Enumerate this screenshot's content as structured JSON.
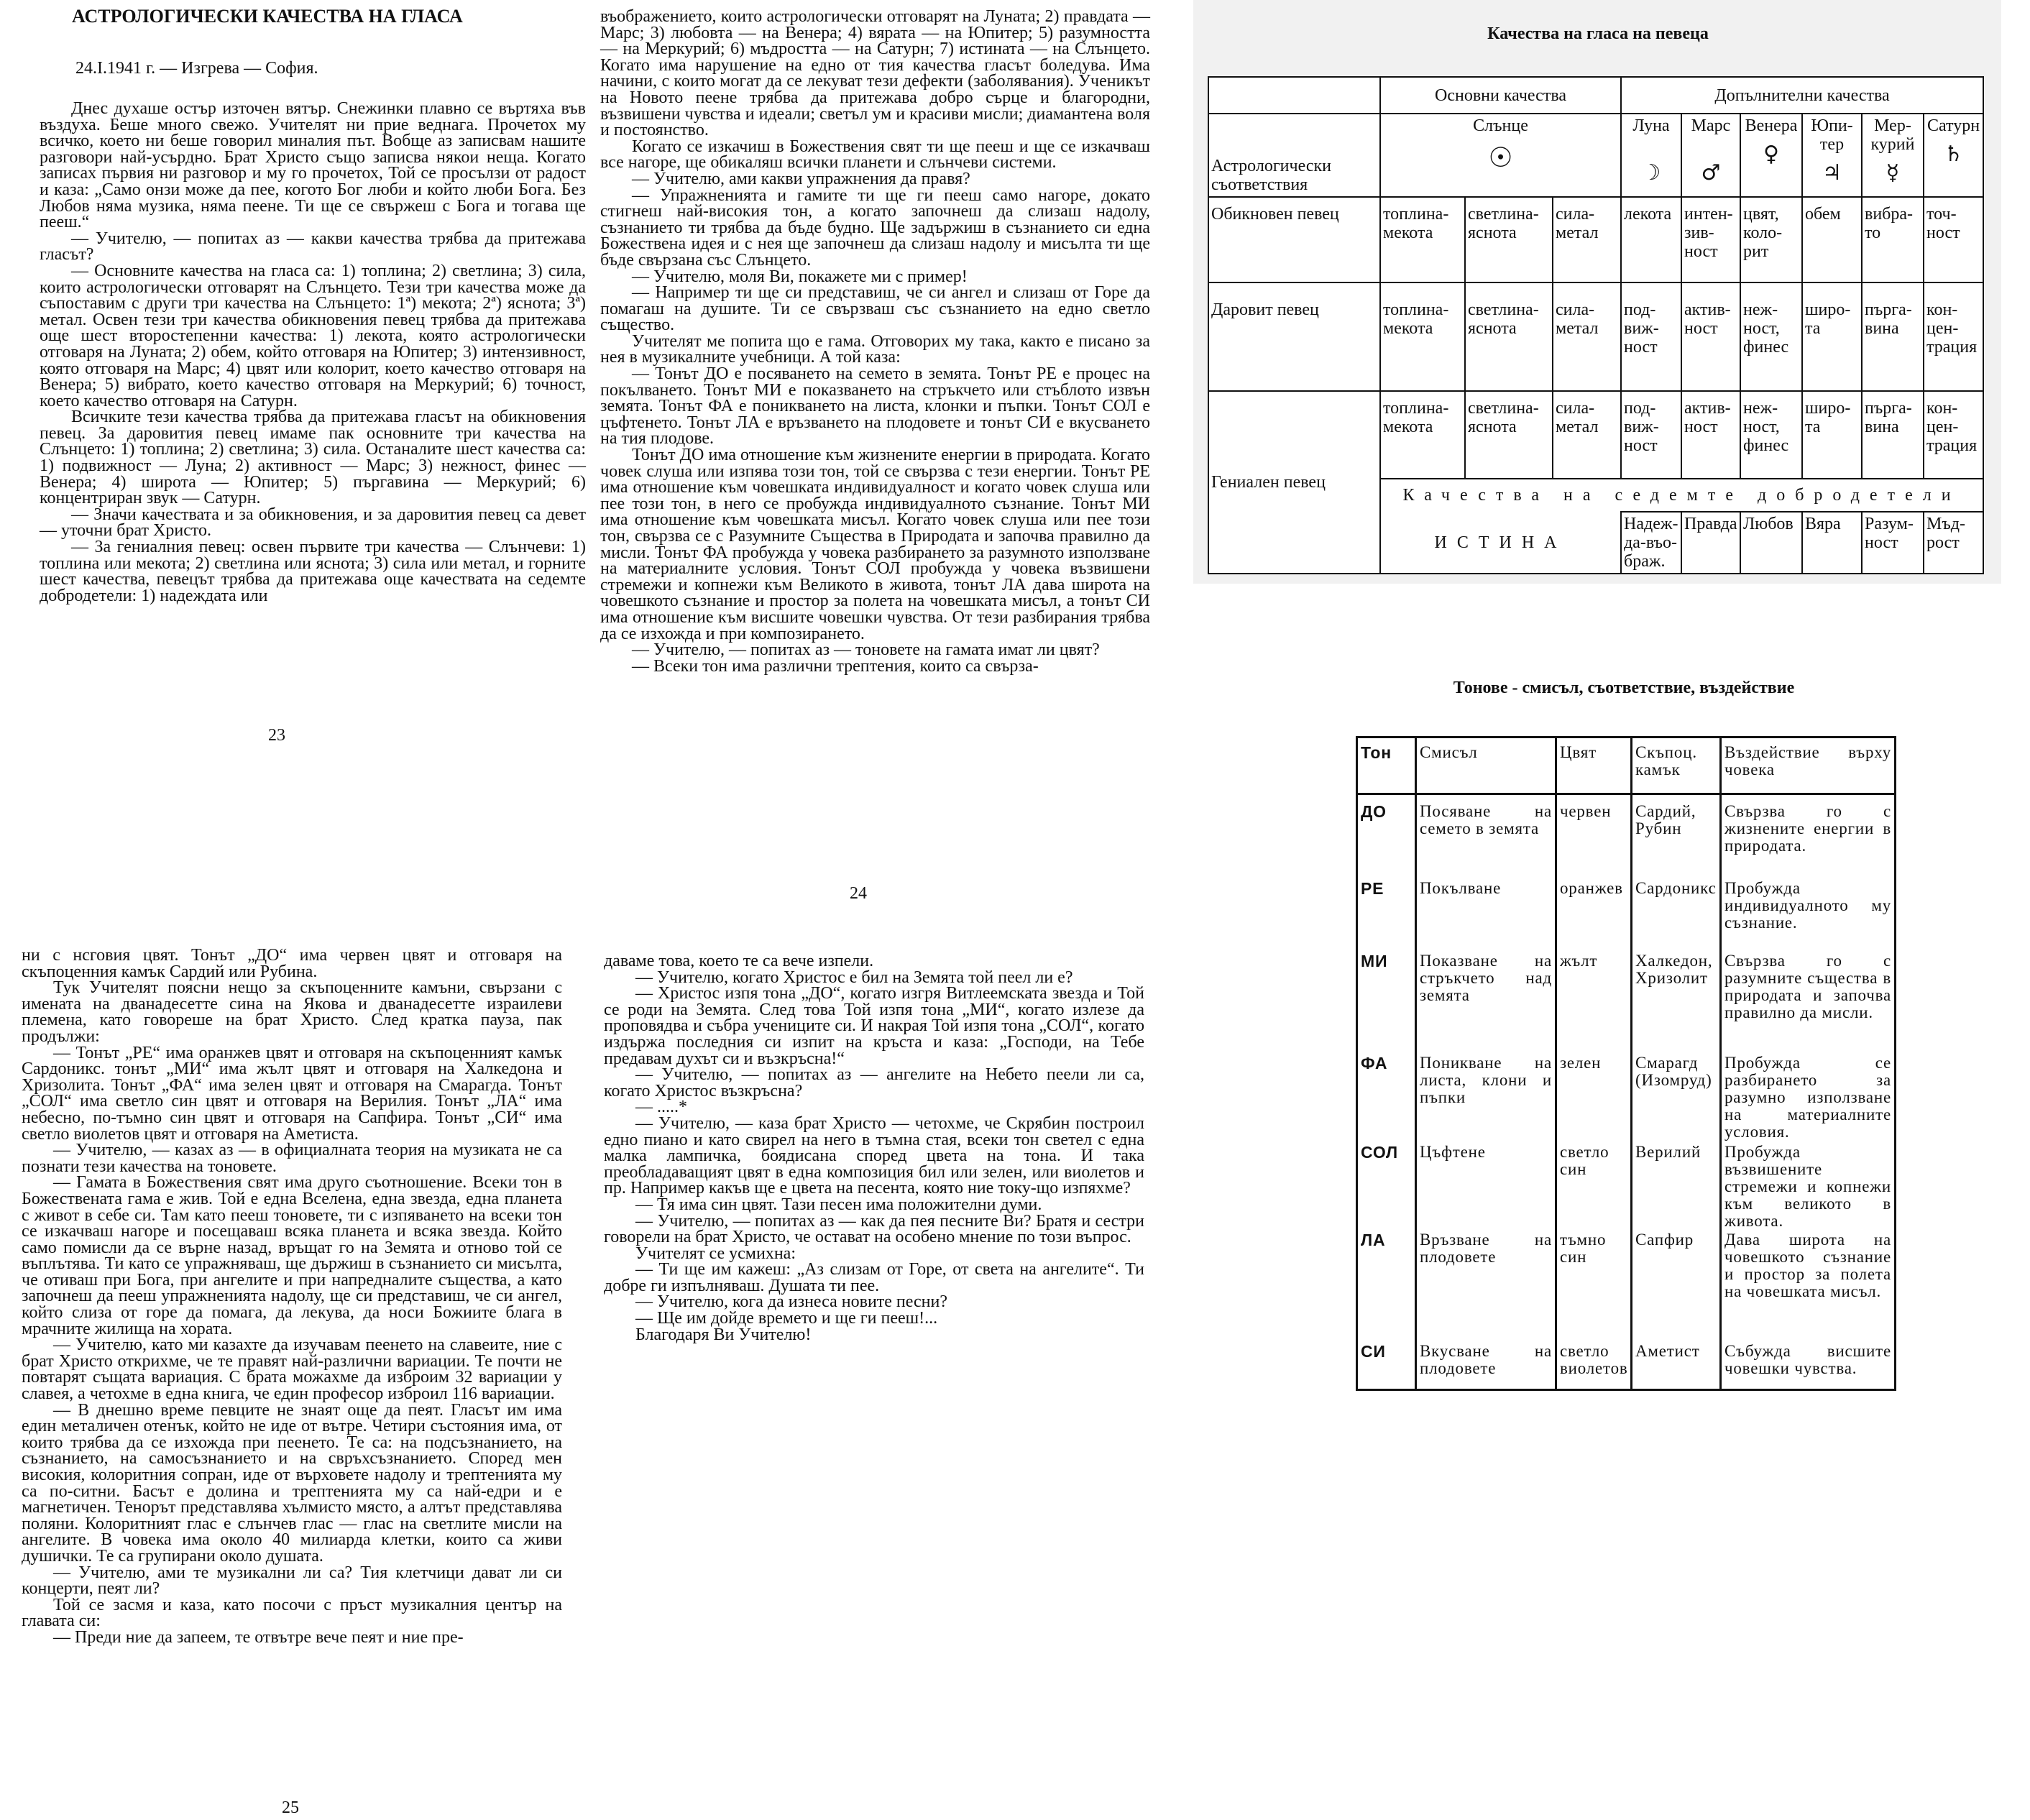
{
  "pages": [
    {
      "title": "АСТРОЛОГИЧЕСКИ КАЧЕСТВА НА ГЛАСА",
      "dateline": "24.I.1941 г. — Изгрева — София.",
      "page_number": "23",
      "paragraphs": [
        "Днес духаше остър източен вятър. Снежинки плавно се въртяха във въздуха. Беше много свежо. Учителят ни прие веднага. Прочетох му всичко, което ни беше говорил миналия път. Вобще аз записвам нашите разговори най-усърдно. Брат Христо също записва някои неща. Когато записах първия ни разговор и му го прочетох, Той се просълзи от радост и каза: „Само онзи може да пее, когото Бог люби и който люби Бога. Без Любов няма музика, няма пеене. Ти ще се свържеш с Бога и тогава ще пееш.“",
        "— Учителю, — попитах аз — какви качества трябва да притежава гласът?",
        "— Основните качества на гласа са: 1) топлина; 2) светлина; 3) сила, които астрологически отговарят на Слънцето. Тези три качества може да съпоставим с други три качества на Слънцето: 1ª) мекота; 2ª) яснота; 3ª) метал. Освен тези три качества обикновения певец трябва да притежава още шест второстепенни качества: 1) лекота, която астрологически отговаря на Луната; 2) обем, който отговаря на Юпитер; 3) интензивност, която отговаря на Марс; 4) цвят или колорит, което качество отговаря на Венера; 5) вибрато, което качество отговаря на Меркурий; 6) точност, което качество отговаря на Сатурн.",
        "Всичките тези качества трябва да притежава гласът на обикновения певец. За даровития певец имаме пак основните три качества на Слънцето: 1) топлина; 2) светлина; 3) сила. Останалите шест качества са: 1) подвижност — Луна; 2) активност — Марс; 3) нежност, финес — Венера; 4) широта — Юпитер; 5) пъргавина — Меркурий; 6) концентриран звук — Сатурн.",
        "— Значи качествата и за обикновения, и за даровития певец са девет — уточни брат Христо.",
        "— За гениалния певец: освен първите три качества — Слънчеви: 1) топлина или мекота; 2) светлина или яснота; 3) сила или метал, и горните шест качества, певецът трябва да притежава още качествата на седемте добродетели: 1) надеждата или"
      ]
    },
    {
      "page_number": "24",
      "paragraphs": [
        "въображението, които астрологически отговарят на Луната; 2) правдата — Марс; 3) любовта — на Венера; 4) вярата — на Юпитер; 5) разумността — на Меркурий; 6) мъдростта — на Сатурн; 7) истината — на Слънцето. Когато има нарушение на едно от тия качества гласът боледува. Има начини, с които могат да се лекуват тези дефекти (заболявания). Ученикът на Новото пеене трябва да притежава добро сърце и благородни, възвишени чувства и идеали; светъл ум и красиви мисли; диамантена воля и постоянство.",
        "Когато се изкачиш в Божествения свят ти ще пееш и ще се изкачваш все нагоре, ще обикаляш всички планети и слънчеви системи.",
        "— Учителю, ами какви упражнения да правя?",
        "— Упражненията и гамите ти ще ги пееш само нагоре, докато стигнеш най-високия тон, а когато започнеш да слизаш надолу, съзнанието ти трябва да бъде будно. Ще задържиш в съзнанието си една Божествена идея и с нея ще започнеш да слизаш надолу и мисълта ти ще бъде свързана със Слънцето.",
        "— Учителю, моля Ви, покажете ми с пример!",
        "— Например ти ще си представиш, че си ангел и слизаш от Горе да помагаш на душите. Ти се свързваш със съзнанието на едно светло същество.",
        "Учителят ме попита що е гама. Отговорих му така, както е писано за нея в музикалните учебници. А той каза:",
        "— Тонът ДО е посяването на семето в земята. Тонът РЕ е процес на покълването. Тонът МИ е показването на стръкчето или стъблото извън земята. Тонът ФА е поникването на листа, клонки и пъпки. Тонът СОЛ е цъфтенето. Тонът ЛА е връзването на плодовете и тонът СИ е вкусването на тия плодове.",
        "Тонът ДО има отношение към жизнените енергии в природата. Когато човек слуша или изпява този тон, той се свързва с тези енергии. Тонът РЕ има отношение към човешката индивидуалност и когато човек слуша или пее този тон, в него се пробужда индивидуалното съзнание. Тонът МИ има отношение към човешката мисъл. Когато човек слуша или пее този тон, свързва се с Разумните Същества в Природата и започва правилно да мисли. Тонът ФА пробужда у човека разбирането за разумното използване на материалните условия. Тонът СОЛ пробужда у човека възвишени стремежи и копнежи към Великото в живота, тонът ЛА дава широта на човешкото съзнание и простор за полета на човешката мисъл, а тонът СИ има отношение към висшите човешки чувства. От тези разбирания трябва да се изхожда и при композирането.",
        "— Учителю, — попитах аз — тоновете на гамата имат ли цвят?",
        "— Всеки тон има различни трептения, които са свърза-"
      ]
    },
    {
      "page_number": "25",
      "paragraphs": [
        "ни с нсговия цвят. Тонът „ДО“ има червен цвят и отговаря на скъпоценния камък Сардий или Рубина.",
        "Тук Учителят поясни нещо за скъпоценните камъни, свързани с имената на дванадесетте сина на Якова и дванадесетте израилеви племена, като говореше на брат Христо. След кратка пауза, пак продължи:",
        "— Тонът „РЕ“ има оранжев цвят и отговаря на скъпоценният камък Сардоникс. тонът „МИ“ има жълт цвят и отговаря на Халкедона и Хризолита. Тонът „ФА“ има зелен цвят и отговаря на Смарагда. Тонът „СОЛ“ има светло син цвят и отговаря на Верилия. Тонът „ЛА“ има небесно, по-тъмно син цвят и отговаря на Сапфира. Тонът „СИ“ има светло виолетов цвят и отговаря на Аметиста.",
        "— Учителю, — казах аз — в официалната теория на музиката не са познати тези качества на тоновете.",
        "— Гамата в Божествения свят има друго съотношение. Всеки тон в Божествената гама е жив. Той е една Вселена, една звезда, една планета с живот в себе си. Там като пееш тоновете, ти с изпяването на всеки тон се изкачваш нагоре и посещаваш всяка планета и всяка звезда. Който само помисли да се върне назад, връщат го на Земята и отново той се въплътява. Ти като се упражняваш, ще държиш в съзнанието си мисълта, че отиваш при Бога, при ангелите и при напредналите същества, а като започнеш да пееш упражненията надолу, ще си представиш, че си ангел, който слиза от горе да помага, да лекува, да носи Божиите блага в мрачните жилища на хората.",
        "— Учителю, като ми казахте да изучавам пеенето на славеите, ние с брат Христо открихме, че те правят най-различни вариации. Те почти не повтарят същата вариация. С брата можахме да изброим 32 вариации у славея, а четохме в една книга, че един професор изброил 116 вариации.",
        "— В днешно време певците не знаят още да пеят. Гласът им има един металичен отенък, който не иде от вътре. Четири състояния има, от които трябва да се изхожда при пеенето. Те са: на подсъзнанието, на съзнанието, на самосъзнанието и на свръхсъзнанието. Според мен високия, колоритния сопран, иде от върховете надолу и трептенията му са по-ситни. Басът е долина и трептенията му са най-едри и е магнетичен. Тенорът представлява хълмисто място, а алтът представлява поляни. Колоритният глас е слънчев глас — глас на светлите мисли на ангелите. В човека има около 40 милиарда клетки, които са живи душички. Те са групирани около душата.",
        "— Учителю, ами те музикални ли са? Тия клетчици дават ли си концерти, пеят ли?",
        "Той се засмя и каза, като посочи с пръст музикалния център на главата си:",
        "— Преди ние да запеем, те отвътре вече пеят и ние пре-"
      ]
    },
    {
      "paragraphs": [
        "даваме това, което те са вече изпели.",
        "— Учителю, когато Христос е бил на Земята той пеел ли е?",
        "— Христос изпя тона „ДО“, когато изгря Витлеемската звезда и Той се роди на Земята. След това Той изпя тона „МИ“, когато излезе да проповядва и събра учениците си. И накрая Той изпя тона „СОЛ“, когато издържа последния си изпит на кръста и каза: „Господи, на Тебе предавам духът си и възкръсна!“",
        "— Учителю, — попитах аз — ангелите на Небето пеели ли са, когато Христос възкръсна?",
        "— .....*",
        "— Учителю, — каза брат Христо — четохме, че Скрябин построил едно пиано и като свирел на него в тъмна стая, всеки тон светел с една малка лампичка, боядисана според цвета на тона. И така преобладаващият цвят в една композиция бил или зелен, или виолетов и пр. Например какъв ще е цвета на песента, която ние току-що изпяхме?",
        "— Тя има син цвят. Тази песен има положителни думи.",
        "— Учителю, — попитах аз — как да пея песните Ви? Братя и сестри говорели на брат Христо, че остават на особено мнение по този въпрос.",
        "Учителят се усмихна:",
        "— Ти ще им кажеш: „Аз слизам от Горе, от света на ангелите“. Ти добре ги изпълняваш. Душата ти пее.",
        "— Учителю, кога да изнеса новите песни?",
        "— Ще им дойде времето и ще ги пееш!...",
        "Благодаря Ви Учителю!"
      ]
    }
  ],
  "table1": {
    "title": "Качества на гласа на певеца",
    "group_headers": [
      "Основни качества",
      "Допълнителни качества"
    ],
    "row_header_label": "Астрологически съответствия",
    "planets": [
      {
        "name": "Слънце",
        "symbol": "☉",
        "icon": "sun-symbol"
      },
      {
        "name": "Луна",
        "symbol": "☽",
        "icon": "moon-symbol"
      },
      {
        "name": "Марс",
        "symbol": "♂",
        "icon": "mars-symbol"
      },
      {
        "name": "Вене­ра",
        "symbol": "♀",
        "icon": "venus-symbol"
      },
      {
        "name": "Юпи­тер",
        "symbol": "♃",
        "icon": "jupiter-symbol"
      },
      {
        "name": "Мер­курий",
        "symbol": "☿",
        "icon": "mercury-symbol"
      },
      {
        "name": "Са­турн",
        "symbol": "♄",
        "icon": "saturn-symbol"
      }
    ],
    "rows": [
      {
        "label": "Обикновен певец",
        "cells": [
          "топлина-мекота",
          "светлина-яснота",
          "сила-метал",
          "лекота",
          "интен­зив­ност",
          "цвят, коло­рит",
          "обем",
          "вибра­то",
          "точ­ност"
        ]
      },
      {
        "label": "Даровит певец",
        "cells": [
          "топлина-мекота",
          "светлина-яснота",
          "сила-метал",
          "под­виж­ност",
          "актив­ност",
          "неж­ност, финес",
          "широ­та",
          "пърга­вина",
          "кон­цен­тра­ция"
        ]
      },
      {
        "label": "Гениален певец",
        "cells": [
          "топлина-мекота",
          "светлина-яснота",
          "сила-метал",
          "под­виж­ност",
          "актив­ност",
          "неж­ност, финес",
          "широ­та",
          "пърга­вина",
          "кон­цен­тра­ция"
        ]
      }
    ],
    "virtues_header": "Качества на седемте добродетели",
    "virtue_sun": "ИСТИНА",
    "virtues": [
      "Надеж­да-въо­браж.",
      "Прав­да",
      "Любов",
      "Вяра",
      "Разум­ност",
      "Мъд­рост"
    ]
  },
  "table2": {
    "title": "Тонове - смисъл, съответствие, въздействие",
    "headers": [
      "Тон",
      "Смисъл",
      "Цвят",
      "Скъпоц. камък",
      "Въздействие върху човека"
    ],
    "rows": [
      [
        "ДО",
        "Посяване на семето в земята",
        "червен",
        "Сардий, Рубин",
        "Свързва го с жизнените енергии в природата."
      ],
      [
        "РЕ",
        "Покълване",
        "оранжев",
        "Сардоникс",
        "Пробужда индивидуалното му съзнание."
      ],
      [
        "МИ",
        "Показване на стръкчето над земята",
        "жълт",
        "Халкедон, Хризолит",
        "Свързва го с разумните същества в природата и започва правилно да мисли."
      ],
      [
        "ФА",
        "Поникване на листа, клони и пъпки",
        "зелен",
        "Смарагд (Изомруд)",
        "Пробужда се разбирането за разумно използване на материалните условия."
      ],
      [
        "СОЛ",
        "Цъфтене",
        "светло син",
        "Верилий",
        "Пробужда възвишените стремежи и копнежи към великото в живота."
      ],
      [
        "ЛА",
        "Връзване на плодовете",
        "тъмно син",
        "Сапфир",
        "Дава широта на човешкото съзнание и простор за полета на човешката мисъл."
      ],
      [
        "СИ",
        "Вкусване на плодовете",
        "светло виолетов",
        "Аметист",
        "Събужда висшите човешки чувства."
      ]
    ]
  }
}
